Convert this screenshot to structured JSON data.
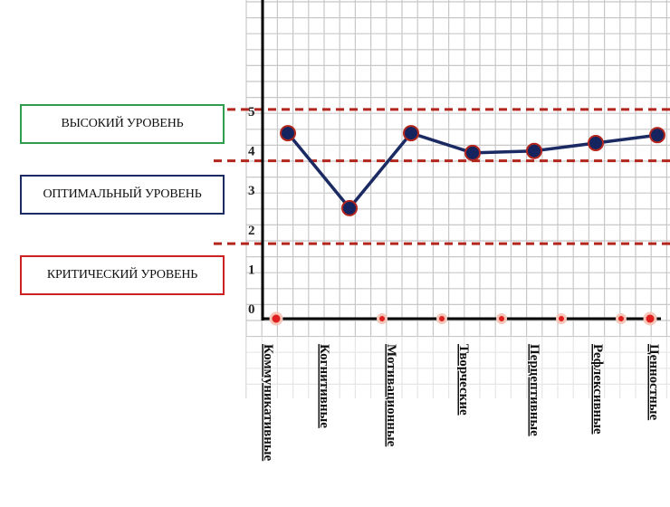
{
  "colors": {
    "grid": "#c8c8c8",
    "axis": "#000000",
    "line": "#1b2a63",
    "point_fill": "#15235e",
    "point_stroke": "#b3261e",
    "threshold": "#b3261e",
    "legend_high": "#2e9e4f",
    "legend_optimal": "#1b2a63",
    "legend_critical": "#cc2222"
  },
  "legend": [
    {
      "label": "ВЫСОКИЙ УРОВЕНЬ",
      "color": "#2e9e4f"
    },
    {
      "label": "ОПТИМАЛЬНЫЙ УРОВЕНЬ",
      "color": "#1b2a63"
    },
    {
      "label": "КРИТИЧЕСКИЙ УРОВЕНЬ",
      "color": "#cc2222"
    }
  ],
  "chart_data": {
    "type": "line",
    "title": "",
    "xlabel": "",
    "ylabel": "",
    "categories": [
      "Коммуникативные",
      "Когнитивные",
      "Мотивационные",
      "Творческие",
      "Перцептивные",
      "Рефлексивные",
      "Ценностные"
    ],
    "values": [
      4.7,
      2.8,
      4.7,
      4.2,
      4.25,
      4.45,
      4.65
    ],
    "ylim": [
      0,
      5.5
    ],
    "yticks": [
      "0",
      "1",
      "2",
      "3",
      "4",
      "5"
    ],
    "thresholds": [
      5.3,
      4.0,
      1.9
    ],
    "grid": true,
    "legend_placement": "left"
  }
}
